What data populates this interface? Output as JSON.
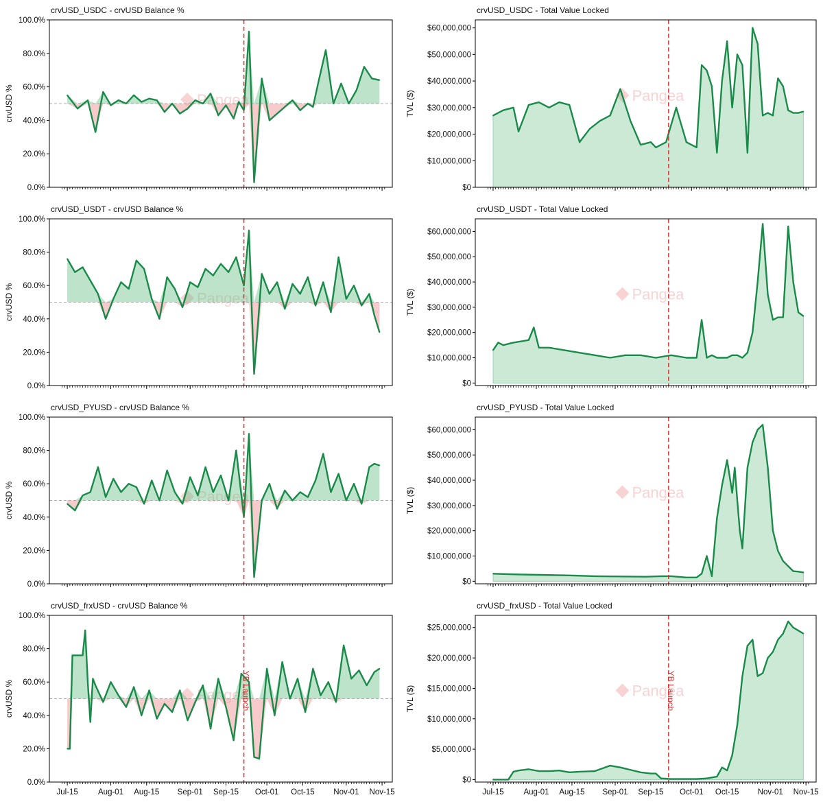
{
  "colors": {
    "line": "#1a8a4a",
    "fill_pos": "#6cc08a",
    "fill_neg": "#f0a0a0",
    "marker": "#e03030",
    "baseline": "#aaaaaa",
    "watermark": "#f4b0b0"
  },
  "watermark": "Pangea",
  "marker_label": "YB Launch",
  "x_ticks": [
    "Jul-15",
    "Aug-01",
    "Aug-15",
    "Sep-01",
    "Sep-15",
    "Oct-01",
    "Oct-15",
    "Nov-01",
    "Nov-15"
  ],
  "chart_data": [
    {
      "type": "line",
      "title": "crvUSD_USDC - crvUSD Balance %",
      "ylabel": "crvUSD %",
      "ylim": [
        0,
        100
      ],
      "yticks": [
        "0.0%",
        "20.0%",
        "40.0%",
        "60.0%",
        "80.0%",
        "100.0%"
      ],
      "baseline": 50,
      "x": [
        0,
        4,
        8,
        11,
        14,
        17,
        20,
        23,
        26,
        29,
        32,
        35,
        38,
        41,
        44,
        47,
        50,
        53,
        56,
        59,
        62,
        65,
        67,
        69,
        71,
        73,
        76,
        79,
        82,
        85,
        88,
        91,
        94,
        96,
        98,
        101,
        104,
        107,
        110,
        113,
        116,
        119,
        122
      ],
      "values": [
        55,
        47,
        52,
        33,
        57,
        49,
        52,
        50,
        55,
        51,
        53,
        52,
        45,
        50,
        44,
        47,
        52,
        50,
        56,
        43,
        49,
        41,
        51,
        46,
        93,
        3,
        65,
        40,
        44,
        48,
        52,
        46,
        50,
        48,
        62,
        82,
        50,
        62,
        50,
        58,
        72,
        65,
        64
      ]
    },
    {
      "type": "area",
      "title": "crvUSD_USDC - Total Value Locked",
      "ylabel": "TVL ($)",
      "ylim": [
        0,
        63000000
      ],
      "yticks": [
        "$0",
        "$10,000,000",
        "$20,000,000",
        "$30,000,000",
        "$40,000,000",
        "$50,000,000",
        "$60,000,000"
      ],
      "x": [
        0,
        4,
        8,
        10,
        14,
        18,
        22,
        26,
        30,
        34,
        38,
        42,
        46,
        50,
        54,
        58,
        62,
        64,
        68,
        72,
        76,
        80,
        82,
        84,
        86,
        88,
        90,
        92,
        94,
        96,
        98,
        100,
        102,
        104,
        106,
        108,
        110,
        112,
        114,
        116,
        118,
        120,
        122
      ],
      "values": [
        27000000,
        29000000,
        30000000,
        21000000,
        31000000,
        32000000,
        30000000,
        32000000,
        31000000,
        17000000,
        22000000,
        25000000,
        27000000,
        37000000,
        25000000,
        16000000,
        17000000,
        15000000,
        17000000,
        30000000,
        17000000,
        15000000,
        46000000,
        44000000,
        38000000,
        13000000,
        40000000,
        55000000,
        30000000,
        50000000,
        46000000,
        13000000,
        60000000,
        54000000,
        27000000,
        28000000,
        27000000,
        41000000,
        38000000,
        29000000,
        28000000,
        28000000,
        28500000
      ]
    },
    {
      "type": "line",
      "title": "crvUSD_USDT - crvUSD Balance %",
      "ylabel": "crvUSD %",
      "ylim": [
        0,
        100
      ],
      "yticks": [
        "0.0%",
        "20.0%",
        "40.0%",
        "60.0%",
        "80.0%",
        "100.0%"
      ],
      "baseline": 50,
      "x": [
        0,
        3,
        6,
        9,
        12,
        15,
        18,
        21,
        24,
        27,
        30,
        33,
        36,
        39,
        42,
        45,
        48,
        51,
        54,
        57,
        60,
        63,
        66,
        69,
        71,
        73,
        76,
        79,
        82,
        85,
        88,
        91,
        94,
        97,
        100,
        103,
        106,
        109,
        112,
        115,
        118,
        120,
        122
      ],
      "values": [
        76,
        68,
        71,
        63,
        55,
        40,
        52,
        62,
        58,
        75,
        70,
        52,
        40,
        65,
        58,
        47,
        62,
        59,
        70,
        66,
        73,
        68,
        77,
        60,
        93,
        7,
        67,
        55,
        62,
        46,
        61,
        55,
        65,
        48,
        62,
        44,
        77,
        52,
        60,
        48,
        55,
        42,
        32
      ]
    },
    {
      "type": "area",
      "title": "crvUSD_USDT - Total Value Locked",
      "ylabel": "TVL ($)",
      "ylim": [
        -1000000,
        65000000
      ],
      "yticks": [
        "$0",
        "$10,000,000",
        "$20,000,000",
        "$30,000,000",
        "$40,000,000",
        "$50,000,000",
        "$60,000,000"
      ],
      "x": [
        0,
        2,
        4,
        8,
        14,
        16,
        18,
        22,
        28,
        34,
        40,
        46,
        52,
        58,
        64,
        70,
        76,
        80,
        82,
        84,
        86,
        88,
        90,
        92,
        94,
        96,
        98,
        100,
        102,
        104,
        106,
        108,
        110,
        112,
        114,
        116,
        118,
        120,
        122
      ],
      "values": [
        13000000,
        16000000,
        15000000,
        16000000,
        17000000,
        22000000,
        14000000,
        14000000,
        13000000,
        12000000,
        11000000,
        10000000,
        11000000,
        11000000,
        10000000,
        11000000,
        10000000,
        10000000,
        25000000,
        10000000,
        11000000,
        10000000,
        10000000,
        10000000,
        11000000,
        11000000,
        10000000,
        12000000,
        20000000,
        40000000,
        63000000,
        35000000,
        25000000,
        26000000,
        26000000,
        62000000,
        40000000,
        28000000,
        26500000
      ]
    },
    {
      "type": "line",
      "title": "crvUSD_PYUSD - crvUSD Balance %",
      "ylabel": "crvUSD %",
      "ylim": [
        0,
        100
      ],
      "yticks": [
        "0.0%",
        "20.0%",
        "40.0%",
        "60.0%",
        "80.0%",
        "100.0%"
      ],
      "baseline": 50,
      "x": [
        0,
        3,
        6,
        9,
        12,
        15,
        18,
        21,
        24,
        27,
        30,
        33,
        36,
        39,
        42,
        45,
        48,
        51,
        54,
        57,
        60,
        63,
        66,
        69,
        71,
        73,
        76,
        79,
        82,
        85,
        88,
        91,
        94,
        97,
        100,
        103,
        106,
        109,
        112,
        115,
        118,
        120,
        122
      ],
      "values": [
        48,
        44,
        53,
        55,
        70,
        52,
        63,
        55,
        60,
        58,
        48,
        62,
        50,
        68,
        55,
        48,
        64,
        53,
        70,
        55,
        65,
        50,
        80,
        40,
        90,
        4,
        50,
        60,
        45,
        56,
        50,
        55,
        52,
        62,
        78,
        55,
        66,
        50,
        60,
        48,
        70,
        72,
        71
      ]
    },
    {
      "type": "area",
      "title": "crvUSD_PYUSD - Total Value Locked",
      "ylabel": "TVL ($)",
      "ylim": [
        -1000000,
        65000000
      ],
      "yticks": [
        "$0",
        "$10,000,000",
        "$20,000,000",
        "$30,000,000",
        "$40,000,000",
        "$50,000,000",
        "$60,000,000"
      ],
      "x": [
        0,
        10,
        20,
        30,
        40,
        50,
        60,
        66,
        70,
        76,
        80,
        82,
        84,
        86,
        88,
        90,
        92,
        94,
        95,
        96,
        97,
        98,
        100,
        102,
        104,
        106,
        108,
        110,
        112,
        114,
        116,
        118,
        120,
        122
      ],
      "values": [
        3000000,
        2700000,
        2500000,
        2300000,
        2000000,
        1900000,
        1800000,
        2000000,
        2000000,
        1500000,
        1500000,
        3000000,
        10000000,
        2000000,
        25000000,
        38000000,
        48000000,
        35000000,
        45000000,
        32000000,
        20000000,
        13000000,
        45000000,
        55000000,
        60000000,
        62000000,
        45000000,
        20000000,
        12000000,
        8000000,
        6000000,
        4000000,
        3800000,
        3500000
      ]
    },
    {
      "type": "line",
      "title": "crvUSD_frxUSD - crvUSD Balance %",
      "ylabel": "crvUSD %",
      "ylim": [
        0,
        100
      ],
      "yticks": [
        "0.0%",
        "20.0%",
        "40.0%",
        "60.0%",
        "80.0%",
        "100.0%"
      ],
      "baseline": 50,
      "x": [
        0,
        1,
        2,
        3,
        6,
        7,
        8,
        9,
        10,
        11,
        14,
        17,
        20,
        23,
        26,
        29,
        32,
        35,
        38,
        41,
        44,
        47,
        50,
        53,
        56,
        59,
        62,
        65,
        68,
        71,
        73,
        75,
        78,
        81,
        84,
        87,
        90,
        93,
        96,
        99,
        102,
        105,
        108,
        111,
        114,
        117,
        120,
        122
      ],
      "values": [
        20,
        20,
        76,
        76,
        76,
        91,
        60,
        36,
        62,
        58,
        48,
        60,
        52,
        45,
        57,
        40,
        55,
        38,
        47,
        42,
        55,
        37,
        48,
        58,
        32,
        62,
        45,
        25,
        65,
        60,
        15,
        14,
        68,
        40,
        72,
        50,
        62,
        42,
        68,
        52,
        60,
        48,
        82,
        62,
        67,
        58,
        66,
        68
      ]
    },
    {
      "type": "area",
      "title": "crvUSD_frxUSD - Total Value Locked",
      "ylabel": "TVL ($)",
      "ylim": [
        -400000,
        27000000
      ],
      "yticks": [
        "$0",
        "$5,000,000",
        "$10,000,000",
        "$15,000,000",
        "$20,000,000",
        "$25,000,000"
      ],
      "x": [
        0,
        6,
        8,
        10,
        14,
        18,
        22,
        26,
        30,
        34,
        40,
        44,
        46,
        50,
        54,
        58,
        62,
        64,
        66,
        70,
        76,
        80,
        84,
        88,
        90,
        92,
        94,
        96,
        98,
        100,
        102,
        104,
        106,
        108,
        110,
        112,
        114,
        116,
        118,
        120,
        122
      ],
      "values": [
        0,
        0,
        1300000,
        1500000,
        1700000,
        1400000,
        1400000,
        1500000,
        1200000,
        1300000,
        1400000,
        2000000,
        2300000,
        2000000,
        1600000,
        1200000,
        1000000,
        1000000,
        200000,
        100000,
        100000,
        100000,
        200000,
        500000,
        2000000,
        1500000,
        4000000,
        9000000,
        17000000,
        22000000,
        23000000,
        17000000,
        17500000,
        20000000,
        21000000,
        23000000,
        24000000,
        26000000,
        25000000,
        24500000,
        24000000
      ]
    }
  ]
}
